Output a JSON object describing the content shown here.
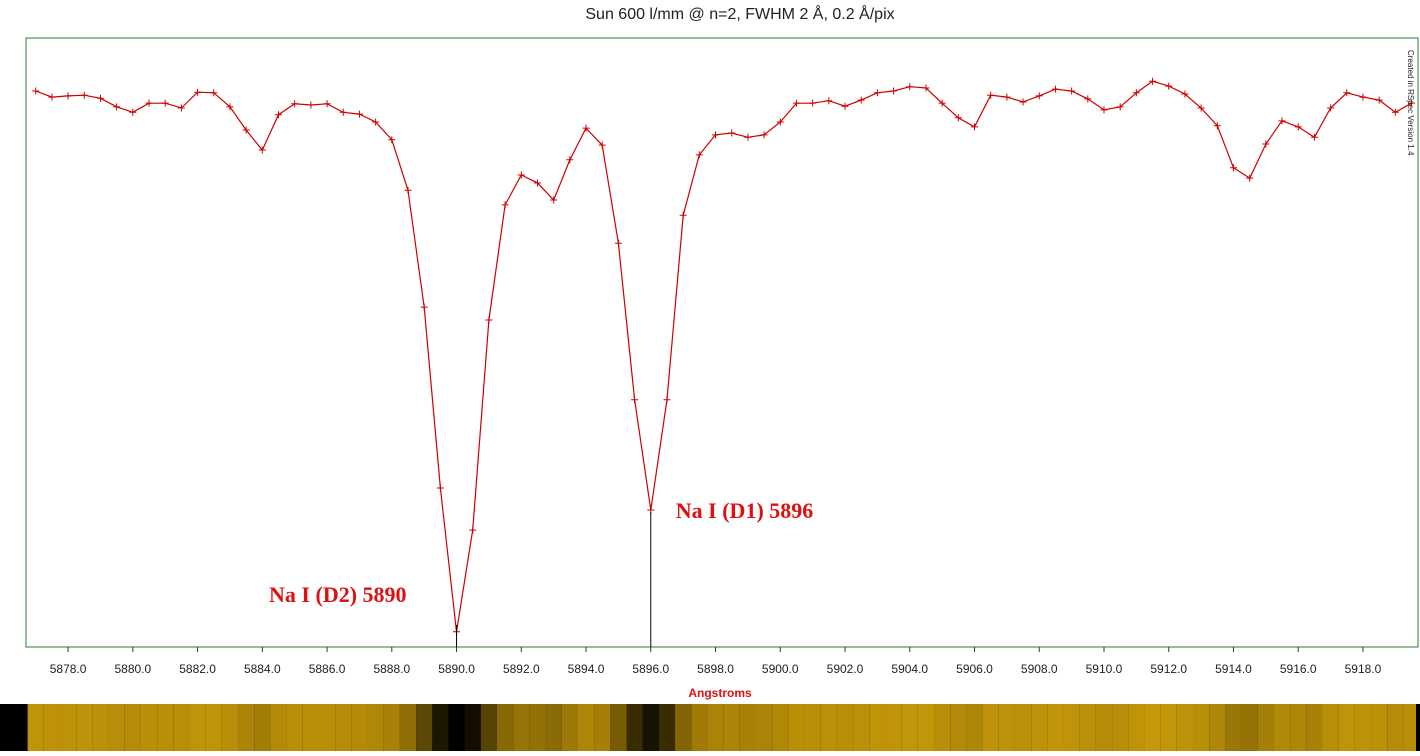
{
  "chart_data": {
    "type": "line",
    "title": "Sun 600 l/mm @ n=2, FWHM 2 Å, 0.2 Å/pix",
    "x_label": "Angstroms",
    "credit": "Created in RSpec Version 1.4",
    "xlim": [
      5876.7,
      5919.7
    ],
    "ylim": [
      0,
      1
    ],
    "xticks": [
      {
        "value": 5878,
        "label": "5878.0"
      },
      {
        "value": 5880,
        "label": "5880.0"
      },
      {
        "value": 5882,
        "label": "5882.0"
      },
      {
        "value": 5884,
        "label": "5884.0"
      },
      {
        "value": 5886,
        "label": "5886.0"
      },
      {
        "value": 5888,
        "label": "5888.0"
      },
      {
        "value": 5890,
        "label": "5890.0"
      },
      {
        "value": 5892,
        "label": "5892.0"
      },
      {
        "value": 5894,
        "label": "5894.0"
      },
      {
        "value": 5896,
        "label": "5896.0"
      },
      {
        "value": 5898,
        "label": "5898.0"
      },
      {
        "value": 5900,
        "label": "5900.0"
      },
      {
        "value": 5902,
        "label": "5902.0"
      },
      {
        "value": 5904,
        "label": "5904.0"
      },
      {
        "value": 5906,
        "label": "5906.0"
      },
      {
        "value": 5908,
        "label": "5908.0"
      },
      {
        "value": 5910,
        "label": "5910.0"
      },
      {
        "value": 5912,
        "label": "5912.0"
      },
      {
        "value": 5914,
        "label": "5914.0"
      },
      {
        "value": 5916,
        "label": "5916.0"
      },
      {
        "value": 5918,
        "label": "5918.0"
      }
    ],
    "x": [
      5877.0,
      5877.5,
      5878.0,
      5878.5,
      5879.0,
      5879.5,
      5880.0,
      5880.5,
      5881.0,
      5881.5,
      5882.0,
      5882.5,
      5883.0,
      5883.5,
      5884.0,
      5884.5,
      5885.0,
      5885.5,
      5886.0,
      5886.5,
      5887.0,
      5887.5,
      5888.0,
      5888.5,
      5889.0,
      5889.5,
      5890.0,
      5890.5,
      5891.0,
      5891.5,
      5892.0,
      5892.5,
      5893.0,
      5893.5,
      5894.0,
      5894.5,
      5895.0,
      5895.5,
      5896.0,
      5896.5,
      5897.0,
      5897.5,
      5898.0,
      5898.5,
      5899.0,
      5899.5,
      5900.0,
      5900.5,
      5901.0,
      5901.5,
      5902.0,
      5902.5,
      5903.0,
      5903.5,
      5904.0,
      5904.5,
      5905.0,
      5905.5,
      5906.0,
      5906.5,
      5907.0,
      5907.5,
      5908.0,
      5908.5,
      5909.0,
      5909.5,
      5910.0,
      5910.5,
      5911.0,
      5911.5,
      5912.0,
      5912.5,
      5913.0,
      5913.5,
      5914.0,
      5914.5,
      5915.0,
      5915.5,
      5916.0,
      5916.5,
      5917.0,
      5917.5,
      5918.0,
      5918.5,
      5919.0,
      5919.5
    ],
    "series": [
      {
        "color": "#cc0000",
        "values": [
          0.913,
          0.903,
          0.905,
          0.906,
          0.901,
          0.887,
          0.878,
          0.893,
          0.893,
          0.885,
          0.911,
          0.91,
          0.887,
          0.849,
          0.816,
          0.874,
          0.892,
          0.89,
          0.892,
          0.878,
          0.875,
          0.862,
          0.833,
          0.75,
          0.558,
          0.261,
          0.025,
          0.192,
          0.537,
          0.726,
          0.775,
          0.762,
          0.734,
          0.8,
          0.852,
          0.824,
          0.663,
          0.406,
          0.225,
          0.406,
          0.709,
          0.808,
          0.841,
          0.844,
          0.837,
          0.841,
          0.862,
          0.893,
          0.893,
          0.897,
          0.888,
          0.898,
          0.91,
          0.913,
          0.92,
          0.918,
          0.893,
          0.869,
          0.854,
          0.906,
          0.903,
          0.895,
          0.905,
          0.916,
          0.913,
          0.9,
          0.882,
          0.887,
          0.91,
          0.929,
          0.921,
          0.908,
          0.885,
          0.856,
          0.787,
          0.77,
          0.826,
          0.864,
          0.854,
          0.837,
          0.885,
          0.91,
          0.903,
          0.898,
          0.878,
          0.893
        ]
      }
    ],
    "annotations": [
      {
        "text": "Na I (D2) 5890",
        "x": 5890
      },
      {
        "text": "Na I (D1) 5896",
        "x": 5896
      }
    ]
  }
}
